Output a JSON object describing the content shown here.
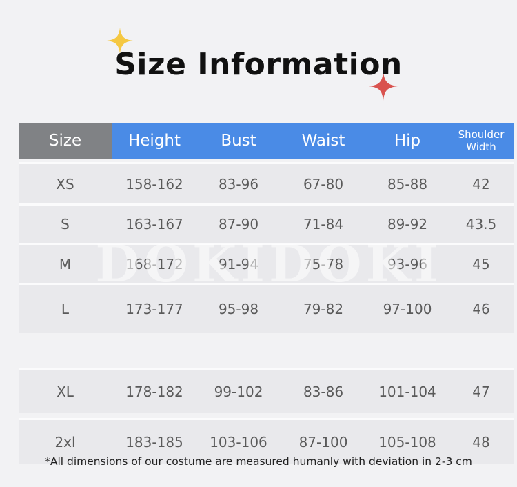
{
  "title": "Size Information",
  "watermark": "DOKIDOKI",
  "colors": {
    "header_size_bg": "#808285",
    "header_bg": "#4a8be6",
    "row_bg": "#e9e9ec",
    "sparkle_gold": "#f5c842",
    "sparkle_red": "#d9534f"
  },
  "table": {
    "headers": [
      "Size",
      "Height",
      "Bust",
      "Waist",
      "Hip",
      "Shoulder Width"
    ],
    "rows": [
      [
        "XS",
        "158-162",
        "83-96",
        "67-80",
        "85-88",
        "42"
      ],
      [
        "S",
        "163-167",
        "87-90",
        "71-84",
        "89-92",
        "43.5"
      ],
      [
        "M",
        "168-172",
        "91-94",
        "75-78",
        "93-96",
        "45"
      ],
      [
        "L",
        "173-177",
        "95-98",
        "79-82",
        "97-100",
        "46"
      ],
      [
        "XL",
        "178-182",
        "99-102",
        "83-86",
        "101-104",
        "47"
      ],
      [
        "2xl",
        "183-185",
        "103-106",
        "87-100",
        "105-108",
        "48"
      ]
    ]
  },
  "footnote": "*All dimensions of our costume are measured humanly with deviation in 2-3 cm"
}
